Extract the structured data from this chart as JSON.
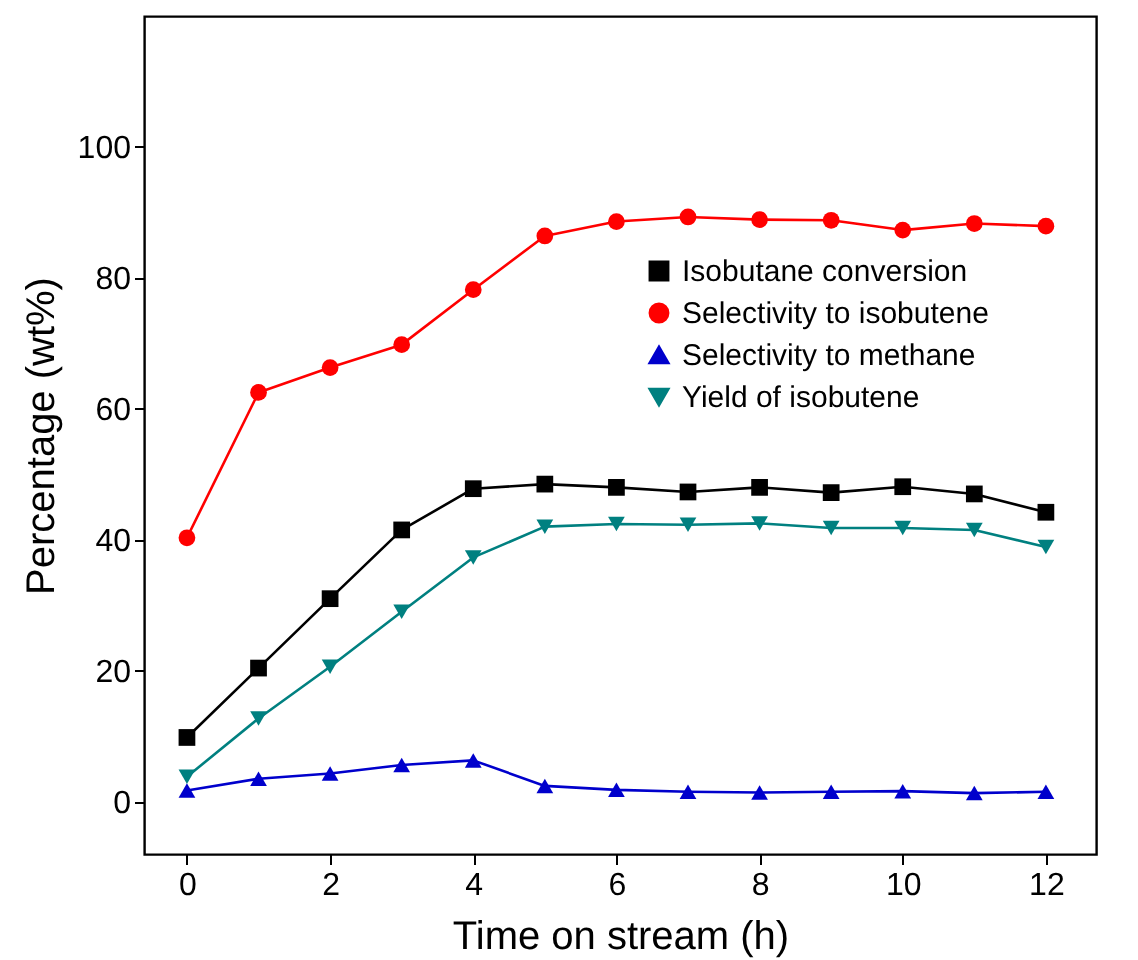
{
  "chart_data": {
    "type": "line",
    "xlabel": "Time on stream (h)",
    "ylabel": "Percentage (wt%)",
    "x": [
      0,
      1,
      2,
      3,
      4,
      5,
      6,
      7,
      8,
      9,
      10,
      11,
      12
    ],
    "xlim": [
      -0.6,
      12.7
    ],
    "xticks": [
      0,
      2,
      4,
      6,
      8,
      10,
      12
    ],
    "ylim": [
      -8,
      120
    ],
    "yticks": [
      0,
      20,
      40,
      60,
      80,
      100
    ],
    "legend": "right",
    "grid": false,
    "line_style": "solid",
    "series": [
      {
        "name": "Isobutane conversion",
        "color": "#000000",
        "marker": "square",
        "values": [
          9.8,
          20.4,
          31,
          41.5,
          47.8,
          48.5,
          48,
          47.3,
          48,
          47.2,
          48.1,
          47,
          44.2
        ]
      },
      {
        "name": "Selectivity to isobutene",
        "color": "#ff0000",
        "marker": "circle",
        "values": [
          40.3,
          62.5,
          66.3,
          69.8,
          78.2,
          86.4,
          88.6,
          89.3,
          88.9,
          88.8,
          87.3,
          88.3,
          87.9
        ]
      },
      {
        "name": "Selectivity to methane",
        "color": "#0000cc",
        "marker": "triangle",
        "values": [
          1.7,
          3.5,
          4.3,
          5.6,
          6.3,
          2.4,
          1.8,
          1.5,
          1.4,
          1.5,
          1.6,
          1.3,
          1.5
        ]
      },
      {
        "name": "Yield of isobutene",
        "color": "#008080",
        "marker": "triangle-down",
        "values": [
          3.8,
          12.7,
          20.6,
          29,
          37.3,
          42,
          42.4,
          42.3,
          42.5,
          41.8,
          41.8,
          41.5,
          38.9
        ]
      }
    ]
  }
}
